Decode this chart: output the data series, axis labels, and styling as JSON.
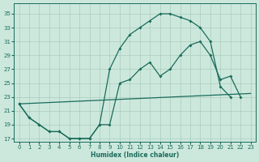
{
  "xlabel": "Humidex (Indice chaleur)",
  "bg_color": "#cce8dd",
  "grid_color": "#aaccbb",
  "line_color": "#1a6b5a",
  "xlim": [
    -0.5,
    23.5
  ],
  "ylim": [
    16.5,
    36.5
  ],
  "yticks": [
    17,
    19,
    21,
    23,
    25,
    27,
    29,
    31,
    33,
    35
  ],
  "xticks": [
    0,
    1,
    2,
    3,
    4,
    5,
    6,
    7,
    8,
    9,
    10,
    11,
    12,
    13,
    14,
    15,
    16,
    17,
    18,
    19,
    20,
    21,
    22,
    23
  ],
  "line1_x": [
    0,
    1,
    2,
    3,
    4,
    5,
    6,
    7,
    8,
    9,
    10,
    11,
    12,
    13,
    14,
    15,
    16,
    17,
    18,
    19,
    20,
    21
  ],
  "line1_y": [
    22,
    20,
    19,
    18,
    18,
    17,
    17,
    17,
    19,
    27,
    30,
    32,
    33,
    34,
    35,
    35,
    34.5,
    34,
    33,
    31,
    24.5,
    23
  ],
  "line2_x": [
    0,
    1,
    2,
    3,
    4,
    5,
    6,
    7,
    8,
    9,
    10,
    11,
    12,
    13,
    14,
    15,
    16,
    17,
    18,
    19,
    20,
    21,
    22
  ],
  "line2_y": [
    22,
    20,
    19,
    18,
    18,
    17,
    17,
    17,
    19,
    19,
    25,
    25.5,
    27,
    28,
    26,
    27,
    29,
    30.5,
    31,
    29,
    25.5,
    26,
    23
  ],
  "line3_x": [
    0,
    23
  ],
  "line3_y": [
    22,
    23.5
  ],
  "marker_size": 2.0,
  "line_width": 0.9,
  "tick_fontsize": 5,
  "xlabel_fontsize": 5.5
}
